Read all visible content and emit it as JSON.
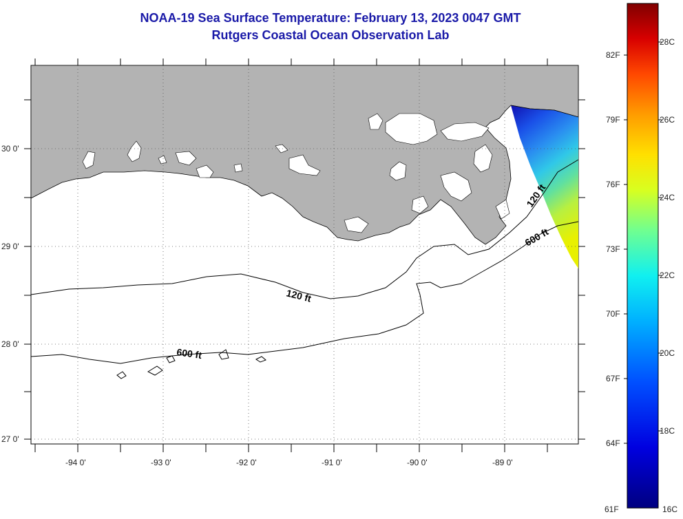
{
  "title": {
    "line1": "NOAA-19 Sea Surface Temperature:  February 13, 2023 0047 GMT",
    "line2": "Rutgers Coastal Ocean Observation Lab"
  },
  "axes": {
    "lat_labels": [
      "30 0'",
      "29 0'",
      "28 0'",
      "27 0'"
    ],
    "lon_labels": [
      "-94 0'",
      "-93 0'",
      "-92 0'",
      "-91 0'",
      "-90 0'",
      "-89 0'"
    ]
  },
  "isobaths": {
    "shallow_label": "120 ft",
    "deep_label": "600 ft"
  },
  "colorbar": {
    "fahrenheit_labels": [
      "82F",
      "79F",
      "76F",
      "73F",
      "70F",
      "67F",
      "64F",
      "61F"
    ],
    "celsius_labels": [
      "28C",
      "26C",
      "24C",
      "22C",
      "20C",
      "18C",
      "16C"
    ],
    "colors": [
      "#800000",
      "#d00000",
      "#ff3000",
      "#ff8c00",
      "#ffd000",
      "#f0ff10",
      "#a0ff60",
      "#40ffc0",
      "#00d8ff",
      "#0090ff",
      "#0040ff",
      "#0000d0",
      "#000080"
    ]
  },
  "colors": {
    "land": "#b3b3b3",
    "title": "#1a1aa8"
  }
}
